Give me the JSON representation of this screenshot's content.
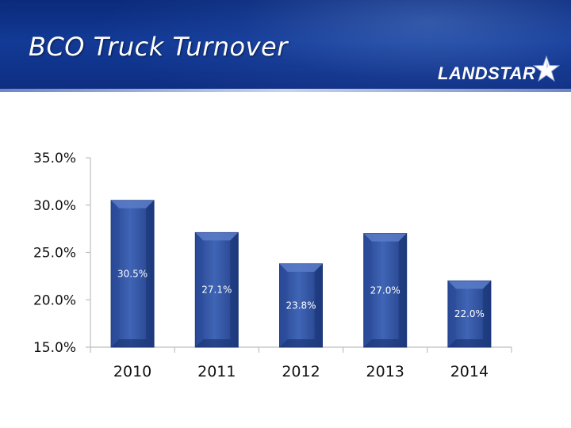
{
  "slide": {
    "title": "BCO Truck Turnover",
    "logo_text": "LANDSTAR"
  },
  "colors": {
    "bar": "#3457a8",
    "bar_dark": "#1c3678",
    "bar_light": "#5b7cc8",
    "header": "#123a96"
  },
  "chart_data": {
    "type": "bar",
    "title": "BCO Truck Turnover",
    "categories": [
      "2010",
      "2011",
      "2012",
      "2013",
      "2014"
    ],
    "values": [
      30.5,
      27.1,
      23.8,
      27.0,
      22.0
    ],
    "data_labels": [
      "30.5%",
      "27.1%",
      "23.8%",
      "27.0%",
      "22.0%"
    ],
    "ylim": [
      15.0,
      35.0
    ],
    "yticks": [
      15.0,
      20.0,
      25.0,
      30.0,
      35.0
    ],
    "ytick_labels": [
      "15.0%",
      "20.0%",
      "25.0%",
      "30.0%",
      "35.0%"
    ],
    "xlabel": "",
    "ylabel": "",
    "grid": false,
    "legend": "none"
  }
}
